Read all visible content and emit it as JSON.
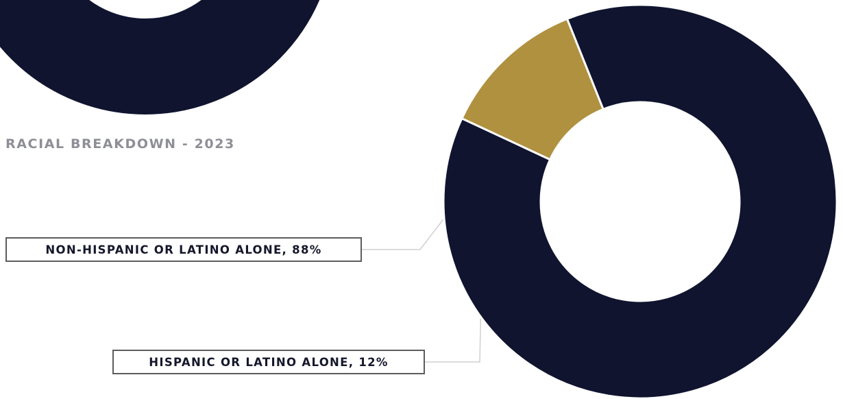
{
  "colors": {
    "primary_slice": "#10142f",
    "secondary_slice": "#b0913f",
    "background": "#ffffff",
    "title_text": "#8e8f96",
    "label_border": "#5c5c5c",
    "leader_line": "#d0d0d0"
  },
  "previous_chart": {
    "type": "donut",
    "partially_visible": true,
    "color": "#10142f"
  },
  "chart_data": {
    "type": "pie",
    "title": "RACIAL BREAKDOWN - 2023",
    "donut": true,
    "categories": [
      "NON-HISPANIC OR LATINO ALONE",
      "HISPANIC OR LATINO ALONE"
    ],
    "values": [
      88,
      12
    ],
    "unit": "%",
    "labels": [
      "NON-HISPANIC OR LATINO ALONE, 88%",
      "HISPANIC OR LATINO ALONE, 12%"
    ],
    "slice_colors": [
      "#10142f",
      "#b0913f"
    ],
    "legend": "none"
  }
}
